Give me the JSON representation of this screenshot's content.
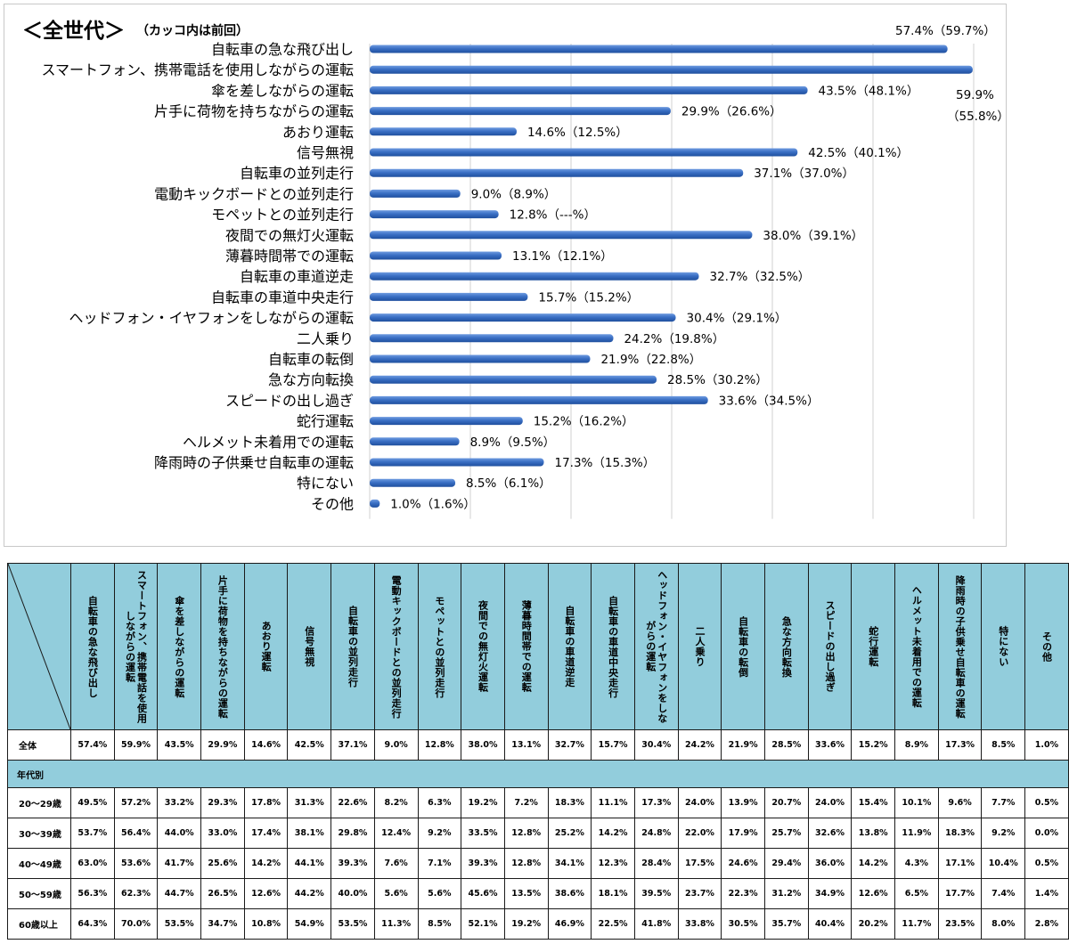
{
  "chart_data": {
    "type": "bar",
    "orientation": "horizontal",
    "title": "＜全世代＞",
    "subtitle": "（カッコ内は前回）",
    "categories": [
      "自転車の急な飛び出し",
      "スマートフォン、携帯電話を使用しながらの運転",
      "傘を差しながらの運転",
      "片手に荷物を持ちながらの運転",
      "あおり運転",
      "信号無視",
      "自転車の並列走行",
      "電動キックボードとの並列走行",
      "モペットとの並列走行",
      "夜間での無灯火運転",
      "薄暮時間帯での運転",
      "自転車の車道逆走",
      "自転車の車道中央走行",
      "ヘッドフォン・イヤフォンをしながらの運転",
      "二人乗り",
      "自転車の転倒",
      "急な方向転換",
      "スピードの出し過ぎ",
      "蛇行運転",
      "ヘルメット未着用での運転",
      "降雨時の子供乗せ自転車の運転",
      "特にない",
      "その他"
    ],
    "values": [
      57.4,
      59.9,
      43.5,
      29.9,
      14.6,
      42.5,
      37.1,
      9.0,
      12.8,
      38.0,
      13.1,
      32.7,
      15.7,
      30.4,
      24.2,
      21.9,
      28.5,
      33.6,
      15.2,
      8.9,
      17.3,
      8.5,
      1.0
    ],
    "labels": [
      "57.4%（59.7%）",
      "59.9%（55.8%）",
      "43.5%（48.1%）",
      "29.9%（26.6%）",
      "14.6%（12.5%）",
      "42.5%（40.1%）",
      "37.1%（37.0%）",
      "9.0%（8.9%）",
      "12.8%（---%）",
      "38.0%（39.1%）",
      "13.1%（12.1%）",
      "32.7%（32.5%）",
      "15.7%（15.2%）",
      "30.4%（29.1%）",
      "24.2%（19.8%）",
      "21.9%（22.8%）",
      "28.5%（30.2%）",
      "33.6%（34.5%）",
      "15.2%（16.2%）",
      "8.9%（9.5%）",
      "17.3%（15.3%）",
      "8.5%（6.1%）",
      "1.0%（1.6%）"
    ],
    "special_label": {
      "line1": "59.9%",
      "line2": "（55.8%）"
    },
    "xlim": [
      0,
      60
    ],
    "grid": true,
    "bar_color": "#3a6fc4"
  },
  "table": {
    "columns": [
      "自転車の急な飛び出し",
      "スマートフォン、携帯電話を使用しながらの運転",
      "傘を差しながらの運転",
      "片手に荷物を持ちながらの運転",
      "あおり運転",
      "信号無視",
      "自転車の並列走行",
      "電動キックボードとの並列走行",
      "モペットとの並列走行",
      "夜間での無灯火運転",
      "薄暮時間帯での運転",
      "自転車の車道逆走",
      "自転車の車道中央走行",
      "ヘッドフォン・イヤフォンをしながらの運転",
      "二人乗り",
      "自転車の転倒",
      "急な方向転換",
      "スピードの出し過ぎ",
      "蛇行運転",
      "ヘルメット未着用での運転",
      "降雨時の子供乗せ自転車の運転",
      "特にない",
      "その他"
    ],
    "overall": {
      "label": "全体",
      "values": [
        "57.4%",
        "59.9%",
        "43.5%",
        "29.9%",
        "14.6%",
        "42.5%",
        "37.1%",
        "9.0%",
        "12.8%",
        "38.0%",
        "13.1%",
        "32.7%",
        "15.7%",
        "30.4%",
        "24.2%",
        "21.9%",
        "28.5%",
        "33.6%",
        "15.2%",
        "8.9%",
        "17.3%",
        "8.5%",
        "1.0%"
      ]
    },
    "section_label": "年代別",
    "rows": [
      {
        "label": "20～29歳",
        "values": [
          "49.5%",
          "57.2%",
          "33.2%",
          "29.3%",
          "17.8%",
          "31.3%",
          "22.6%",
          "8.2%",
          "6.3%",
          "19.2%",
          "7.2%",
          "18.3%",
          "11.1%",
          "17.3%",
          "24.0%",
          "13.9%",
          "20.7%",
          "24.0%",
          "15.4%",
          "10.1%",
          "9.6%",
          "7.7%",
          "0.5%"
        ]
      },
      {
        "label": "30～39歳",
        "values": [
          "53.7%",
          "56.4%",
          "44.0%",
          "33.0%",
          "17.4%",
          "38.1%",
          "29.8%",
          "12.4%",
          "9.2%",
          "33.5%",
          "12.8%",
          "25.2%",
          "14.2%",
          "24.8%",
          "22.0%",
          "17.9%",
          "25.7%",
          "32.6%",
          "13.8%",
          "11.9%",
          "18.3%",
          "9.2%",
          "0.0%"
        ]
      },
      {
        "label": "40～49歳",
        "values": [
          "63.0%",
          "53.6%",
          "41.7%",
          "25.6%",
          "14.2%",
          "44.1%",
          "39.3%",
          "7.6%",
          "7.1%",
          "39.3%",
          "12.8%",
          "34.1%",
          "12.3%",
          "28.4%",
          "17.5%",
          "24.6%",
          "29.4%",
          "36.0%",
          "14.2%",
          "4.3%",
          "17.1%",
          "10.4%",
          "0.5%"
        ]
      },
      {
        "label": "50～59歳",
        "values": [
          "56.3%",
          "62.3%",
          "44.7%",
          "26.5%",
          "12.6%",
          "44.2%",
          "40.0%",
          "5.6%",
          "5.6%",
          "45.6%",
          "13.5%",
          "38.6%",
          "18.1%",
          "39.5%",
          "23.7%",
          "22.3%",
          "31.2%",
          "34.9%",
          "12.6%",
          "6.5%",
          "17.7%",
          "7.4%",
          "1.4%"
        ]
      },
      {
        "label": "60歳以上",
        "values": [
          "64.3%",
          "70.0%",
          "53.5%",
          "34.7%",
          "10.8%",
          "54.9%",
          "53.5%",
          "11.3%",
          "8.5%",
          "52.1%",
          "19.2%",
          "46.9%",
          "22.5%",
          "41.8%",
          "33.8%",
          "30.5%",
          "35.7%",
          "40.4%",
          "20.2%",
          "11.7%",
          "23.5%",
          "8.0%",
          "2.8%"
        ]
      }
    ]
  }
}
